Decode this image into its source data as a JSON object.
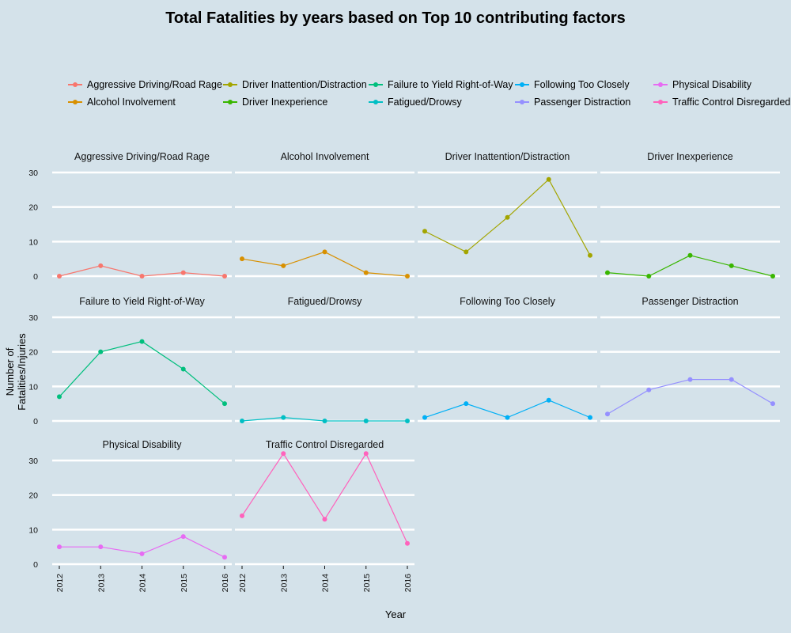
{
  "chart_data": {
    "type": "line",
    "title": "Total Fatalities by years based on Top 10 contributing factors",
    "xlabel": "Year",
    "ylabel": "Number of Fatalities/Injuries",
    "x": [
      "2012",
      "2013",
      "2014",
      "2015",
      "2016"
    ],
    "ylim": [
      0,
      32
    ],
    "yticks": [
      "0",
      "10",
      "20",
      "30"
    ],
    "grid": true,
    "legend_position": "top",
    "facet": "wrap 4 columns",
    "series": [
      {
        "name": "Aggressive Driving/Road Rage",
        "color": "#F8766D",
        "values": [
          0,
          3,
          0,
          1,
          0
        ]
      },
      {
        "name": "Alcohol Involvement",
        "color": "#D89000",
        "values": [
          5,
          3,
          7,
          1,
          0
        ]
      },
      {
        "name": "Driver Inattention/Distraction",
        "color": "#A3A500",
        "values": [
          13,
          7,
          17,
          28,
          6
        ]
      },
      {
        "name": "Driver Inexperience",
        "color": "#39B600",
        "values": [
          1,
          0,
          6,
          3,
          0
        ]
      },
      {
        "name": "Failure to Yield Right-of-Way",
        "color": "#00BF7D",
        "values": [
          7,
          20,
          23,
          15,
          5
        ]
      },
      {
        "name": "Fatigued/Drowsy",
        "color": "#00BFC4",
        "values": [
          0,
          1,
          0,
          0,
          0
        ]
      },
      {
        "name": "Following Too Closely",
        "color": "#00B0F6",
        "values": [
          1,
          5,
          1,
          6,
          1
        ]
      },
      {
        "name": "Passenger Distraction",
        "color": "#9590FF",
        "values": [
          2,
          9,
          12,
          12,
          5
        ]
      },
      {
        "name": "Physical Disability",
        "color": "#E76BF3",
        "values": [
          5,
          5,
          3,
          8,
          2
        ]
      },
      {
        "name": "Traffic Control Disregarded",
        "color": "#FF62BC",
        "values": [
          14,
          32,
          13,
          32,
          6
        ]
      }
    ]
  }
}
